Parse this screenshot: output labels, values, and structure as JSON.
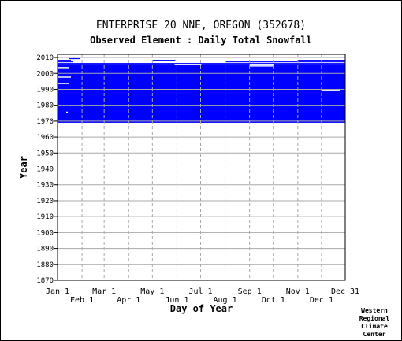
{
  "header": {
    "title": "ENTERPRISE 20 NNE, OREGON   (352678)",
    "subtitle": "Observed Element : Daily Total Snowfall"
  },
  "credit": [
    "Western",
    "Regional",
    "Climate",
    "Center"
  ],
  "colors": {
    "data": "#0000ff",
    "grid": "#a8a8a8",
    "frame": "#000000",
    "background": "#ffffff"
  },
  "chart_data": {
    "type": "heatmap",
    "xlabel": "Day of Year",
    "ylabel": "Year",
    "ylim": [
      1870,
      2012
    ],
    "xlim": [
      1,
      365
    ],
    "grid": true,
    "y_ticks": [
      1870,
      1880,
      1890,
      1900,
      1910,
      1920,
      1930,
      1940,
      1950,
      1960,
      1970,
      1980,
      1990,
      2000,
      2010
    ],
    "x_ticks_upper": [
      {
        "label": "Jan 1",
        "day": 1
      },
      {
        "label": "Mar 1",
        "day": 60
      },
      {
        "label": "May 1",
        "day": 121
      },
      {
        "label": "Jul 1",
        "day": 182
      },
      {
        "label": "Sep 1",
        "day": 244
      },
      {
        "label": "Nov 1",
        "day": 305
      },
      {
        "label": "Dec 31",
        "day": 365
      }
    ],
    "x_ticks_lower": [
      {
        "label": "Feb 1",
        "day": 32
      },
      {
        "label": "Apr 1",
        "day": 91
      },
      {
        "label": "Jun 1",
        "day": 152
      },
      {
        "label": "Aug 1",
        "day": 213
      },
      {
        "label": "Oct 1",
        "day": 274
      },
      {
        "label": "Dec 1",
        "day": 335
      }
    ],
    "coverage": [
      {
        "start_year": 1969,
        "end_year": 2005,
        "start_day": 1,
        "end_day": 365,
        "note": "data present"
      }
    ],
    "later_records": [
      {
        "year": 2006,
        "start_day": 1,
        "end_day": 365
      },
      {
        "year": 2007,
        "start_day": 1,
        "end_day": 20
      },
      {
        "year": 2007,
        "start_day": 214,
        "end_day": 365
      },
      {
        "year": 2008,
        "start_day": 1,
        "end_day": 18
      },
      {
        "year": 2008,
        "start_day": 121,
        "end_day": 150
      },
      {
        "year": 2008,
        "start_day": 305,
        "end_day": 365
      },
      {
        "year": 2009,
        "start_day": 15,
        "end_day": 30
      },
      {
        "year": 2010,
        "start_day": 60,
        "end_day": 120
      },
      {
        "year": 2010,
        "start_day": 305,
        "end_day": 335
      }
    ],
    "missing_blocks": [
      {
        "year": 2005,
        "start_day": 149,
        "end_day": 183
      },
      {
        "year": 2005,
        "start_day": 244,
        "end_day": 275
      },
      {
        "year": 2004,
        "start_day": 244,
        "end_day": 275
      },
      {
        "year": 2003,
        "start_day": 1,
        "end_day": 16
      },
      {
        "year": 1997,
        "start_day": 1,
        "end_day": 18
      },
      {
        "year": 1993,
        "start_day": 1,
        "end_day": 15
      },
      {
        "year": 1989,
        "start_day": 335,
        "end_day": 358
      },
      {
        "year": 1975,
        "start_day": 12,
        "end_day": 14
      }
    ]
  }
}
